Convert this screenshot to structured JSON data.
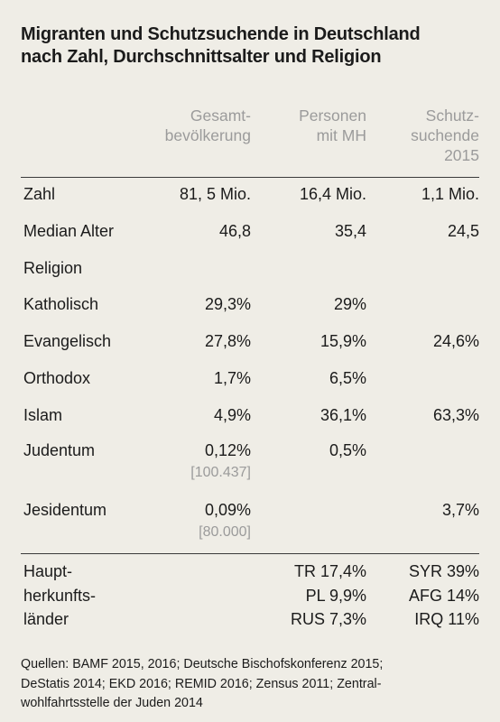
{
  "title": {
    "line1": "Migranten und Schutzsuchende in Deutschland",
    "line2": "nach Zahl, Durchschnittsalter und Religion"
  },
  "columns": [
    {
      "line1": "Gesamt-",
      "line2": "bevölkerung",
      "line3": ""
    },
    {
      "line1": "Personen",
      "line2": "mit MH",
      "line3": ""
    },
    {
      "line1": "Schutz-",
      "line2": "suchende",
      "line3": "2015"
    }
  ],
  "rows": {
    "zahl": {
      "label": "Zahl",
      "v1": "81, 5 Mio.",
      "v2": "16,4 Mio.",
      "v3": "1,1 Mio."
    },
    "alter": {
      "label": "Median Alter",
      "v1": "46,8",
      "v2": "35,4",
      "v3": "24,5"
    },
    "religion": {
      "label": "Religion"
    },
    "katholisch": {
      "label": "Katholisch",
      "v1": "29,3%",
      "v2": "29%",
      "v3": ""
    },
    "evangelisch": {
      "label": "Evangelisch",
      "v1": "27,8%",
      "v2": "15,9%",
      "v3": "24,6%"
    },
    "orthodox": {
      "label": "Orthodox",
      "v1": "1,7%",
      "v2": "6,5%",
      "v3": ""
    },
    "islam": {
      "label": "Islam",
      "v1": "4,9%",
      "v2": "36,1%",
      "v3": "63,3%"
    },
    "judentum": {
      "label": "Judentum",
      "v1": "0,12%",
      "v1_sub": "[100.437]",
      "v2": "0,5%",
      "v3": ""
    },
    "jesidentum": {
      "label": "Jesidentum",
      "v1": "0,09%",
      "v1_sub": "[80.000]",
      "v2": "",
      "v3": "3,7%"
    }
  },
  "origins": {
    "label_lines": [
      "Haupt-",
      "herkunfts-",
      "länder"
    ],
    "mh": [
      "TR 17,4%",
      "PL 9,9%",
      "RUS 7,3%"
    ],
    "schutz": [
      "SYR 39%",
      "AFG 14%",
      "IRQ 11%"
    ]
  },
  "sources": {
    "line1": "Quellen: BAMF 2015, 2016; Deutsche Bischofskonferenz 2015;",
    "line2": "DeStatis 2014; EKD 2016; REMID 2016; Zensus 2011; Zentral-",
    "line3": "wohlfahrtsstelle der Juden 2014"
  }
}
